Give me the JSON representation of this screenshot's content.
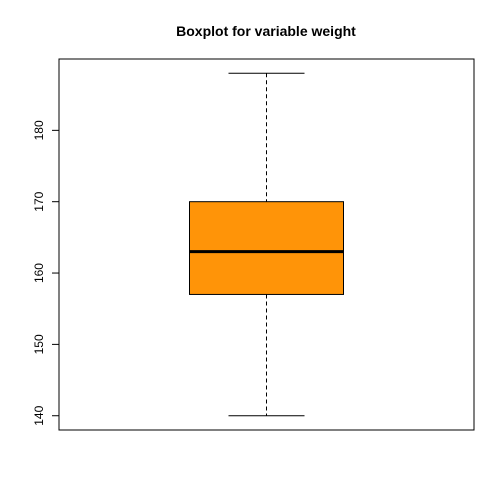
{
  "chart_data": {
    "type": "boxplot",
    "title": "Boxplot for variable weight",
    "xlabel": "",
    "ylabel": "",
    "ylim": [
      138,
      190
    ],
    "y_ticks": [
      140,
      150,
      160,
      170,
      180
    ],
    "grid": false,
    "series": [
      {
        "min": 140,
        "q1": 157,
        "median": 163,
        "q3": 170,
        "max": 188
      }
    ],
    "colors": {
      "box_fill": "#FF9408",
      "stroke": "#000000"
    }
  }
}
